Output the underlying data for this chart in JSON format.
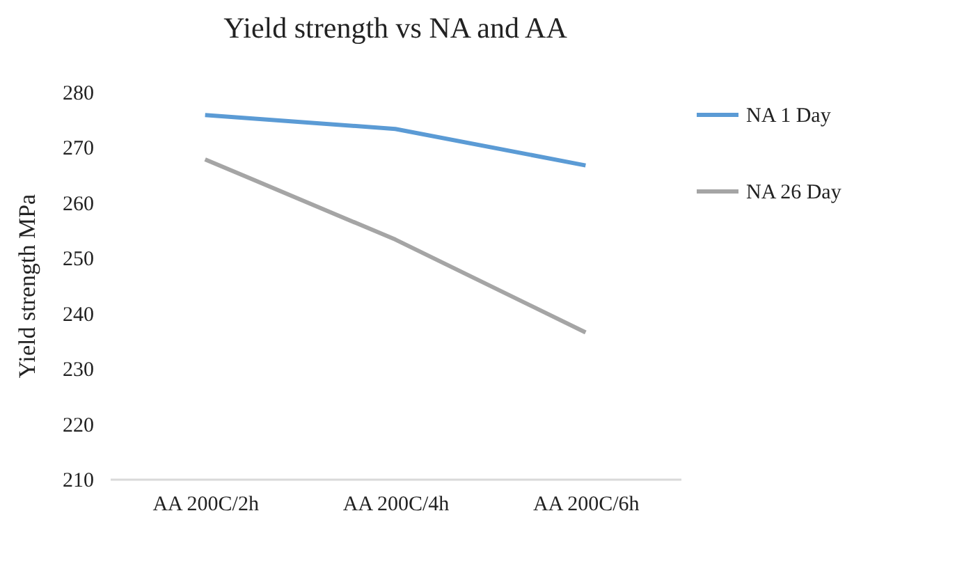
{
  "chart_data": {
    "type": "line",
    "title": "Yield strength vs NA and AA",
    "ylabel": "Yield strength MPa",
    "categories": [
      "AA 200C/2h",
      "AA 200C/4h",
      "AA 200C/6h"
    ],
    "series": [
      {
        "name": "NA 1 Day",
        "color": "#5b9bd5",
        "values": [
          275.8,
          273.3,
          266.7
        ]
      },
      {
        "name": "NA 26 Day",
        "color": "#a5a5a5",
        "values": [
          267.8,
          253.3,
          236.5
        ]
      }
    ],
    "ylim": [
      210,
      280
    ],
    "yticks": [
      210,
      220,
      230,
      240,
      250,
      260,
      270,
      280
    ],
    "grid": false,
    "legend": "right",
    "marker": "none",
    "line_style": "solid"
  }
}
